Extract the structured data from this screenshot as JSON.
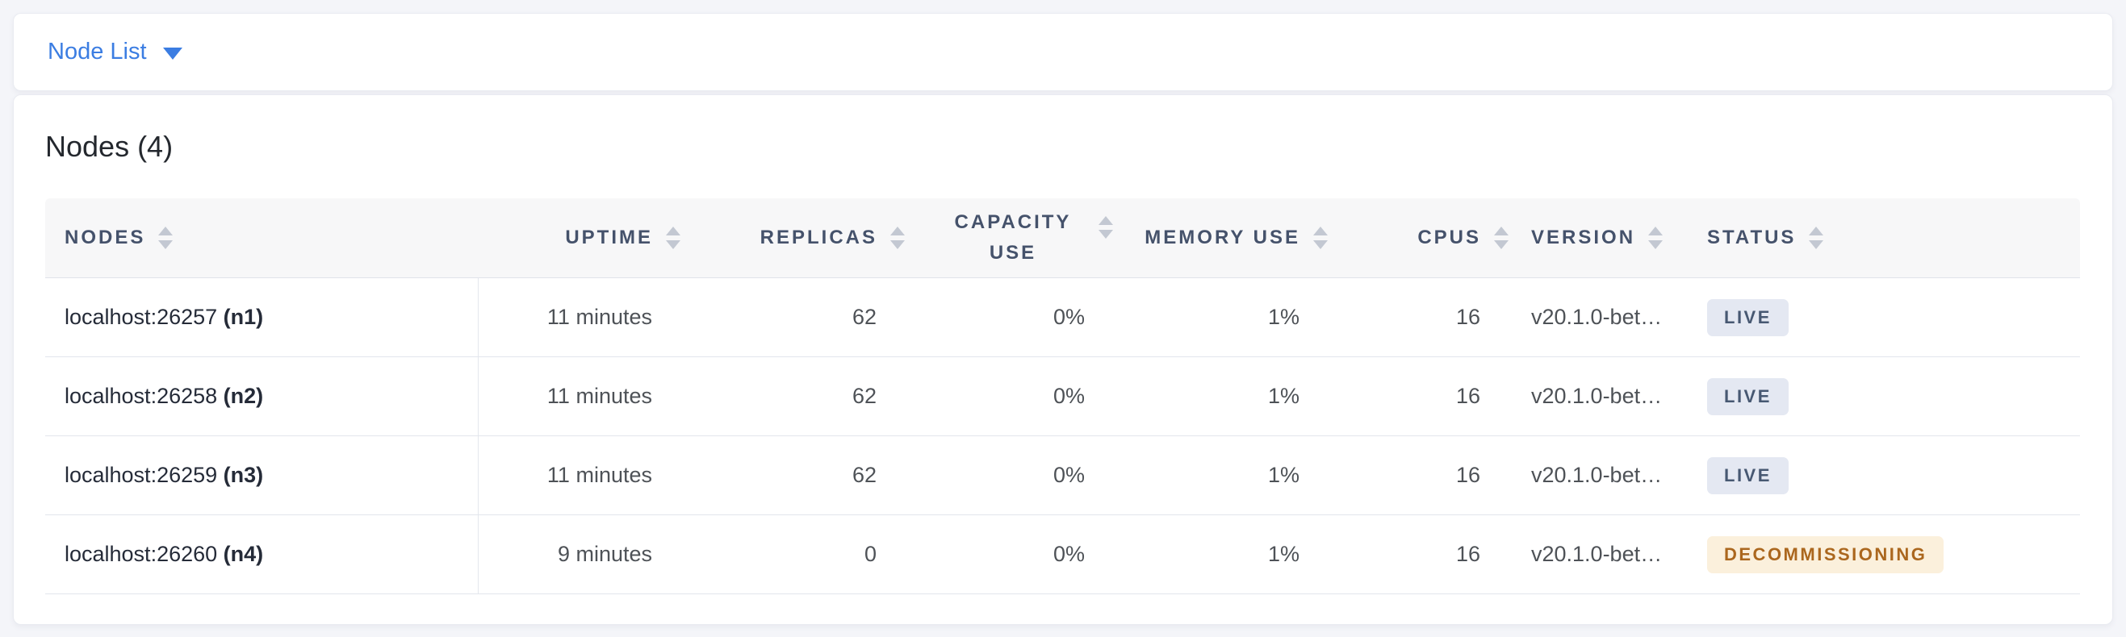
{
  "colors": {
    "accent_blue": "#3b7de2",
    "page_background": "#f4f5f9",
    "card_background": "#ffffff",
    "table_header_background": "#f7f7f8",
    "table_header_text": "#45526b",
    "node_address_text": "#252b38",
    "cell_text": "#4e5257",
    "live_badge_background": "#e4e8f2",
    "live_badge_text": "#475872",
    "decommissioning_badge_background": "#fbf0dc",
    "decommissioning_badge_text": "#ab671e"
  },
  "view_selector": {
    "label": "Node List"
  },
  "panel": {
    "title": "Nodes (4)",
    "table": {
      "columns": [
        {
          "key": "nodes",
          "label": "NODES",
          "align": "left",
          "two_line": false
        },
        {
          "key": "uptime",
          "label": "UPTIME",
          "align": "right",
          "two_line": false
        },
        {
          "key": "replicas",
          "label": "REPLICAS",
          "align": "right",
          "two_line": false
        },
        {
          "key": "capacity_use",
          "label": "CAPACITY USE",
          "align": "right",
          "two_line": true
        },
        {
          "key": "memory_use",
          "label": "MEMORY USE",
          "align": "right",
          "two_line": false
        },
        {
          "key": "cpus",
          "label": "CPUS",
          "align": "right",
          "two_line": false
        },
        {
          "key": "version",
          "label": "VERSION",
          "align": "left",
          "two_line": false
        },
        {
          "key": "status",
          "label": "STATUS",
          "align": "left",
          "two_line": false
        }
      ],
      "rows": [
        {
          "address": "localhost:26257",
          "node_id": "(n1)",
          "uptime": "11 minutes",
          "replicas": "62",
          "capacity_use": "0%",
          "memory_use": "1%",
          "cpus": "16",
          "version": "v20.1.0-bet…",
          "status": "LIVE",
          "status_type": "live"
        },
        {
          "address": "localhost:26258",
          "node_id": "(n2)",
          "uptime": "11 minutes",
          "replicas": "62",
          "capacity_use": "0%",
          "memory_use": "1%",
          "cpus": "16",
          "version": "v20.1.0-bet…",
          "status": "LIVE",
          "status_type": "live"
        },
        {
          "address": "localhost:26259",
          "node_id": "(n3)",
          "uptime": "11 minutes",
          "replicas": "62",
          "capacity_use": "0%",
          "memory_use": "1%",
          "cpus": "16",
          "version": "v20.1.0-bet…",
          "status": "LIVE",
          "status_type": "live"
        },
        {
          "address": "localhost:26260",
          "node_id": "(n4)",
          "uptime": "9 minutes",
          "replicas": "0",
          "capacity_use": "0%",
          "memory_use": "1%",
          "cpus": "16",
          "version": "v20.1.0-bet…",
          "status": "DECOMMISSIONING",
          "status_type": "decommissioning"
        }
      ]
    }
  }
}
